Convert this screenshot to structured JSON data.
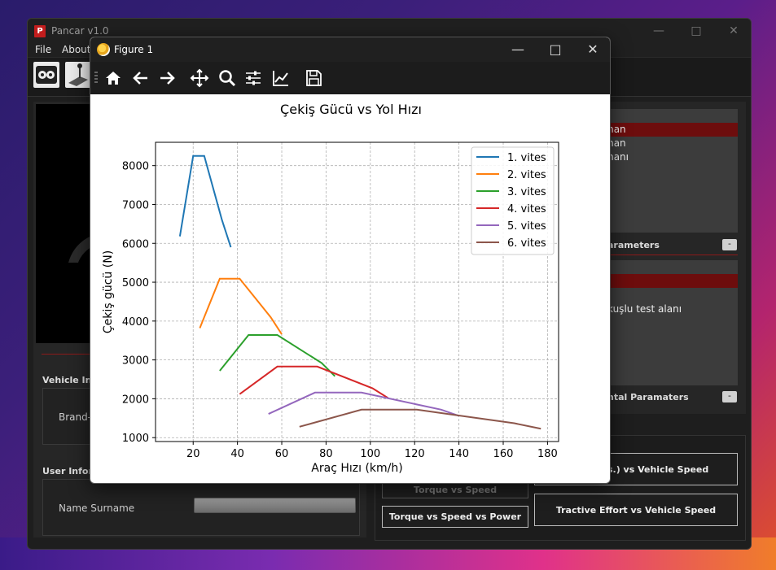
{
  "app": {
    "title": "Pancar v1.0",
    "menu": [
      "File",
      "About"
    ],
    "left": {
      "vehicle_info_label": "Vehicle Info",
      "brand_label": "Brand-M",
      "user_info_label": "User Inform",
      "name_label": "Name Surname"
    },
    "right": {
      "list1": [
        "man",
        "man",
        "manı"
      ],
      "params1_label": "arameters",
      "minus": "-",
      "list2": [
        "kuşlu test alanı"
      ],
      "params2_label": "ntal Paramaters"
    },
    "buttons": {
      "tractive_no_res": "ithout res.) vs Vehicle Speed",
      "torque_speed": "Torque vs Speed",
      "torque_speed_power": "Torque vs Speed vs Power",
      "tractive_effort": "Tractive Effort vs Vehicle Speed"
    }
  },
  "figure": {
    "title": "Figure 1",
    "toolbar_icons": [
      "home-icon",
      "back-icon",
      "forward-icon",
      "pan-icon",
      "zoom-icon",
      "configure-icon",
      "axes-icon",
      "save-icon"
    ]
  },
  "chart_data": {
    "type": "line",
    "title": "Çekiş Gücü vs Yol Hızı",
    "xlabel": "Araç Hızı (km/h)",
    "ylabel": "Çekiş gücü (N)",
    "xlim": [
      3,
      185
    ],
    "ylim": [
      900,
      8600
    ],
    "xticks": [
      20,
      40,
      60,
      80,
      100,
      120,
      140,
      160,
      180
    ],
    "yticks": [
      1000,
      2000,
      3000,
      4000,
      5000,
      6000,
      7000,
      8000
    ],
    "grid": true,
    "legend": "top-right",
    "series": [
      {
        "name": "1. vites",
        "color": "#1f77b4",
        "x": [
          14,
          20,
          25,
          33,
          37
        ],
        "y": [
          6180,
          8250,
          8250,
          6600,
          5900
        ]
      },
      {
        "name": "2. vites",
        "color": "#ff7f0e",
        "x": [
          23,
          32,
          41,
          55,
          60
        ],
        "y": [
          3820,
          5090,
          5090,
          4100,
          3660
        ]
      },
      {
        "name": "3. vites",
        "color": "#2ca02c",
        "x": [
          32,
          45,
          58,
          78,
          84
        ],
        "y": [
          2720,
          3640,
          3640,
          2920,
          2580
        ]
      },
      {
        "name": "4. vites",
        "color": "#d62728",
        "x": [
          41,
          58,
          76,
          101,
          108
        ],
        "y": [
          2120,
          2830,
          2830,
          2270,
          2020
        ]
      },
      {
        "name": "5. vites",
        "color": "#9467bd",
        "x": [
          54,
          75,
          96,
          132,
          140
        ],
        "y": [
          1610,
          2160,
          2160,
          1720,
          1560
        ]
      },
      {
        "name": "6. vites",
        "color": "#8c564b",
        "x": [
          68,
          96,
          121,
          165,
          177
        ],
        "y": [
          1280,
          1720,
          1720,
          1370,
          1230
        ]
      }
    ]
  }
}
